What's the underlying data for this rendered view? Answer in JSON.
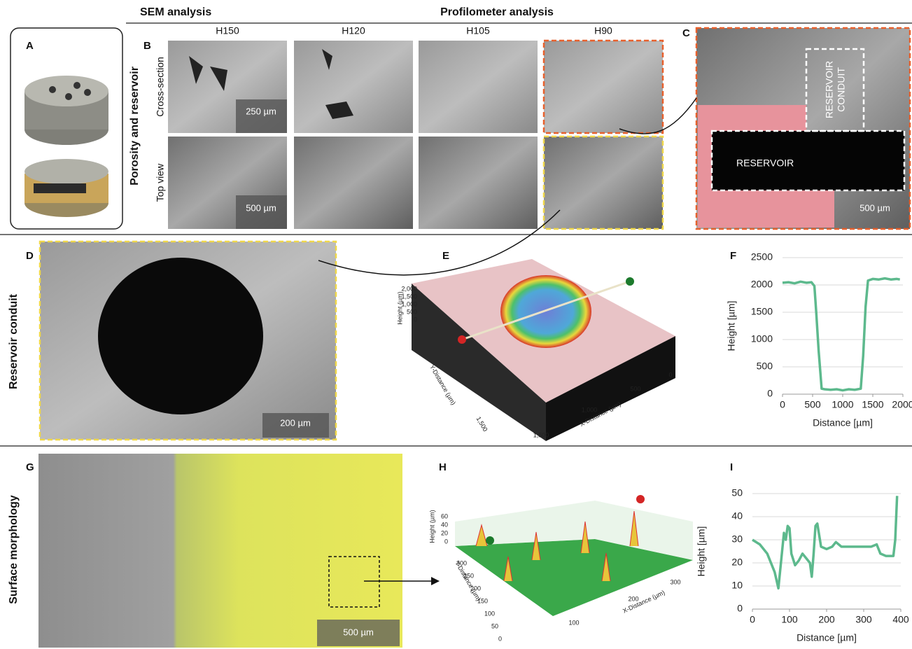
{
  "header": {
    "sem": "SEM analysis",
    "profilometer": "Profilometer analysis"
  },
  "panel_labels": [
    "A",
    "B",
    "C",
    "D",
    "E",
    "F",
    "G",
    "H",
    "I"
  ],
  "row_labels": [
    "Porosity and reservoir",
    "Reservoir conduit",
    "Surface morphology"
  ],
  "panel_b": {
    "columns": [
      "H150",
      "H120",
      "H105",
      "H90"
    ],
    "rows": [
      "Cross-section",
      "Top view"
    ],
    "scale_bars": [
      "250 µm",
      "500 µm"
    ]
  },
  "panel_c": {
    "reservoir": "RESERVOIR",
    "conduit": [
      "RESERVOIR",
      "CONDUIT"
    ],
    "scale_bar": "500 µm"
  },
  "panel_d": {
    "scale_bar": "200 µm"
  },
  "panel_e": {
    "z_label": "Height (µm)",
    "y_label": "Y-Distance (µm)",
    "x_label": "X-Distance (µm)",
    "z_ticks": [
      "2,000",
      "1,500",
      "1,000",
      "500",
      "0"
    ],
    "y_ticks": [
      "1,500"
    ],
    "x_ticks": [
      "1,500",
      "1,000",
      "500",
      "0"
    ]
  },
  "panel_g": {
    "scale_bar": "500 µm"
  },
  "panel_h": {
    "z_label": "Height (µm)",
    "y_label": "Y-Distance (µm)",
    "x_label": "X-Distance (µm)",
    "z_ticks": [
      "60",
      "40",
      "20",
      "0"
    ],
    "y_ticks": [
      "300",
      "250",
      "200",
      "150",
      "100",
      "50",
      "0"
    ],
    "x_ticks": [
      "100",
      "200",
      "300"
    ]
  },
  "chart_data": [
    {
      "type": "line",
      "xlabel": "Distance [µm]",
      "ylabel": "Height [µm]",
      "xlim": [
        0,
        2000
      ],
      "xticks": [
        0,
        500,
        1000,
        1500,
        2000
      ],
      "ylim": [
        0,
        2500
      ],
      "yticks": [
        0,
        500,
        1000,
        1500,
        2000,
        2500
      ],
      "grid": true,
      "series": [
        {
          "color": "#5db98d",
          "x": [
            0,
            100,
            200,
            300,
            400,
            480,
            530,
            560,
            600,
            650,
            700,
            800,
            900,
            1000,
            1100,
            1200,
            1300,
            1340,
            1380,
            1420,
            1500,
            1600,
            1700,
            1800,
            1900,
            1950
          ],
          "values": [
            2040,
            2050,
            2030,
            2060,
            2040,
            2050,
            1980,
            1500,
            800,
            100,
            90,
            80,
            90,
            70,
            90,
            80,
            100,
            700,
            1600,
            2080,
            2110,
            2100,
            2120,
            2100,
            2110,
            2100
          ]
        }
      ]
    },
    {
      "type": "line",
      "xlabel": "Distance [µm]",
      "ylabel": "Height [µm]",
      "xlim": [
        0,
        400
      ],
      "xticks": [
        0,
        100,
        200,
        300,
        400
      ],
      "ylim": [
        0,
        50
      ],
      "yticks": [
        0,
        10,
        20,
        30,
        40,
        50
      ],
      "grid": true,
      "series": [
        {
          "color": "#5db98d",
          "x": [
            0,
            20,
            40,
            60,
            70,
            80,
            85,
            90,
            95,
            100,
            105,
            115,
            125,
            135,
            145,
            155,
            160,
            165,
            170,
            175,
            185,
            200,
            215,
            225,
            240,
            260,
            280,
            300,
            320,
            335,
            345,
            360,
            380,
            385,
            390
          ],
          "values": [
            30,
            28,
            24,
            16,
            9,
            25,
            33,
            30,
            36,
            35,
            24,
            19,
            21,
            24,
            22,
            20,
            14,
            24,
            36,
            37,
            27,
            26,
            27,
            29,
            27,
            27,
            27,
            27,
            27,
            28,
            24,
            23,
            23,
            30,
            49
          ]
        }
      ]
    }
  ]
}
